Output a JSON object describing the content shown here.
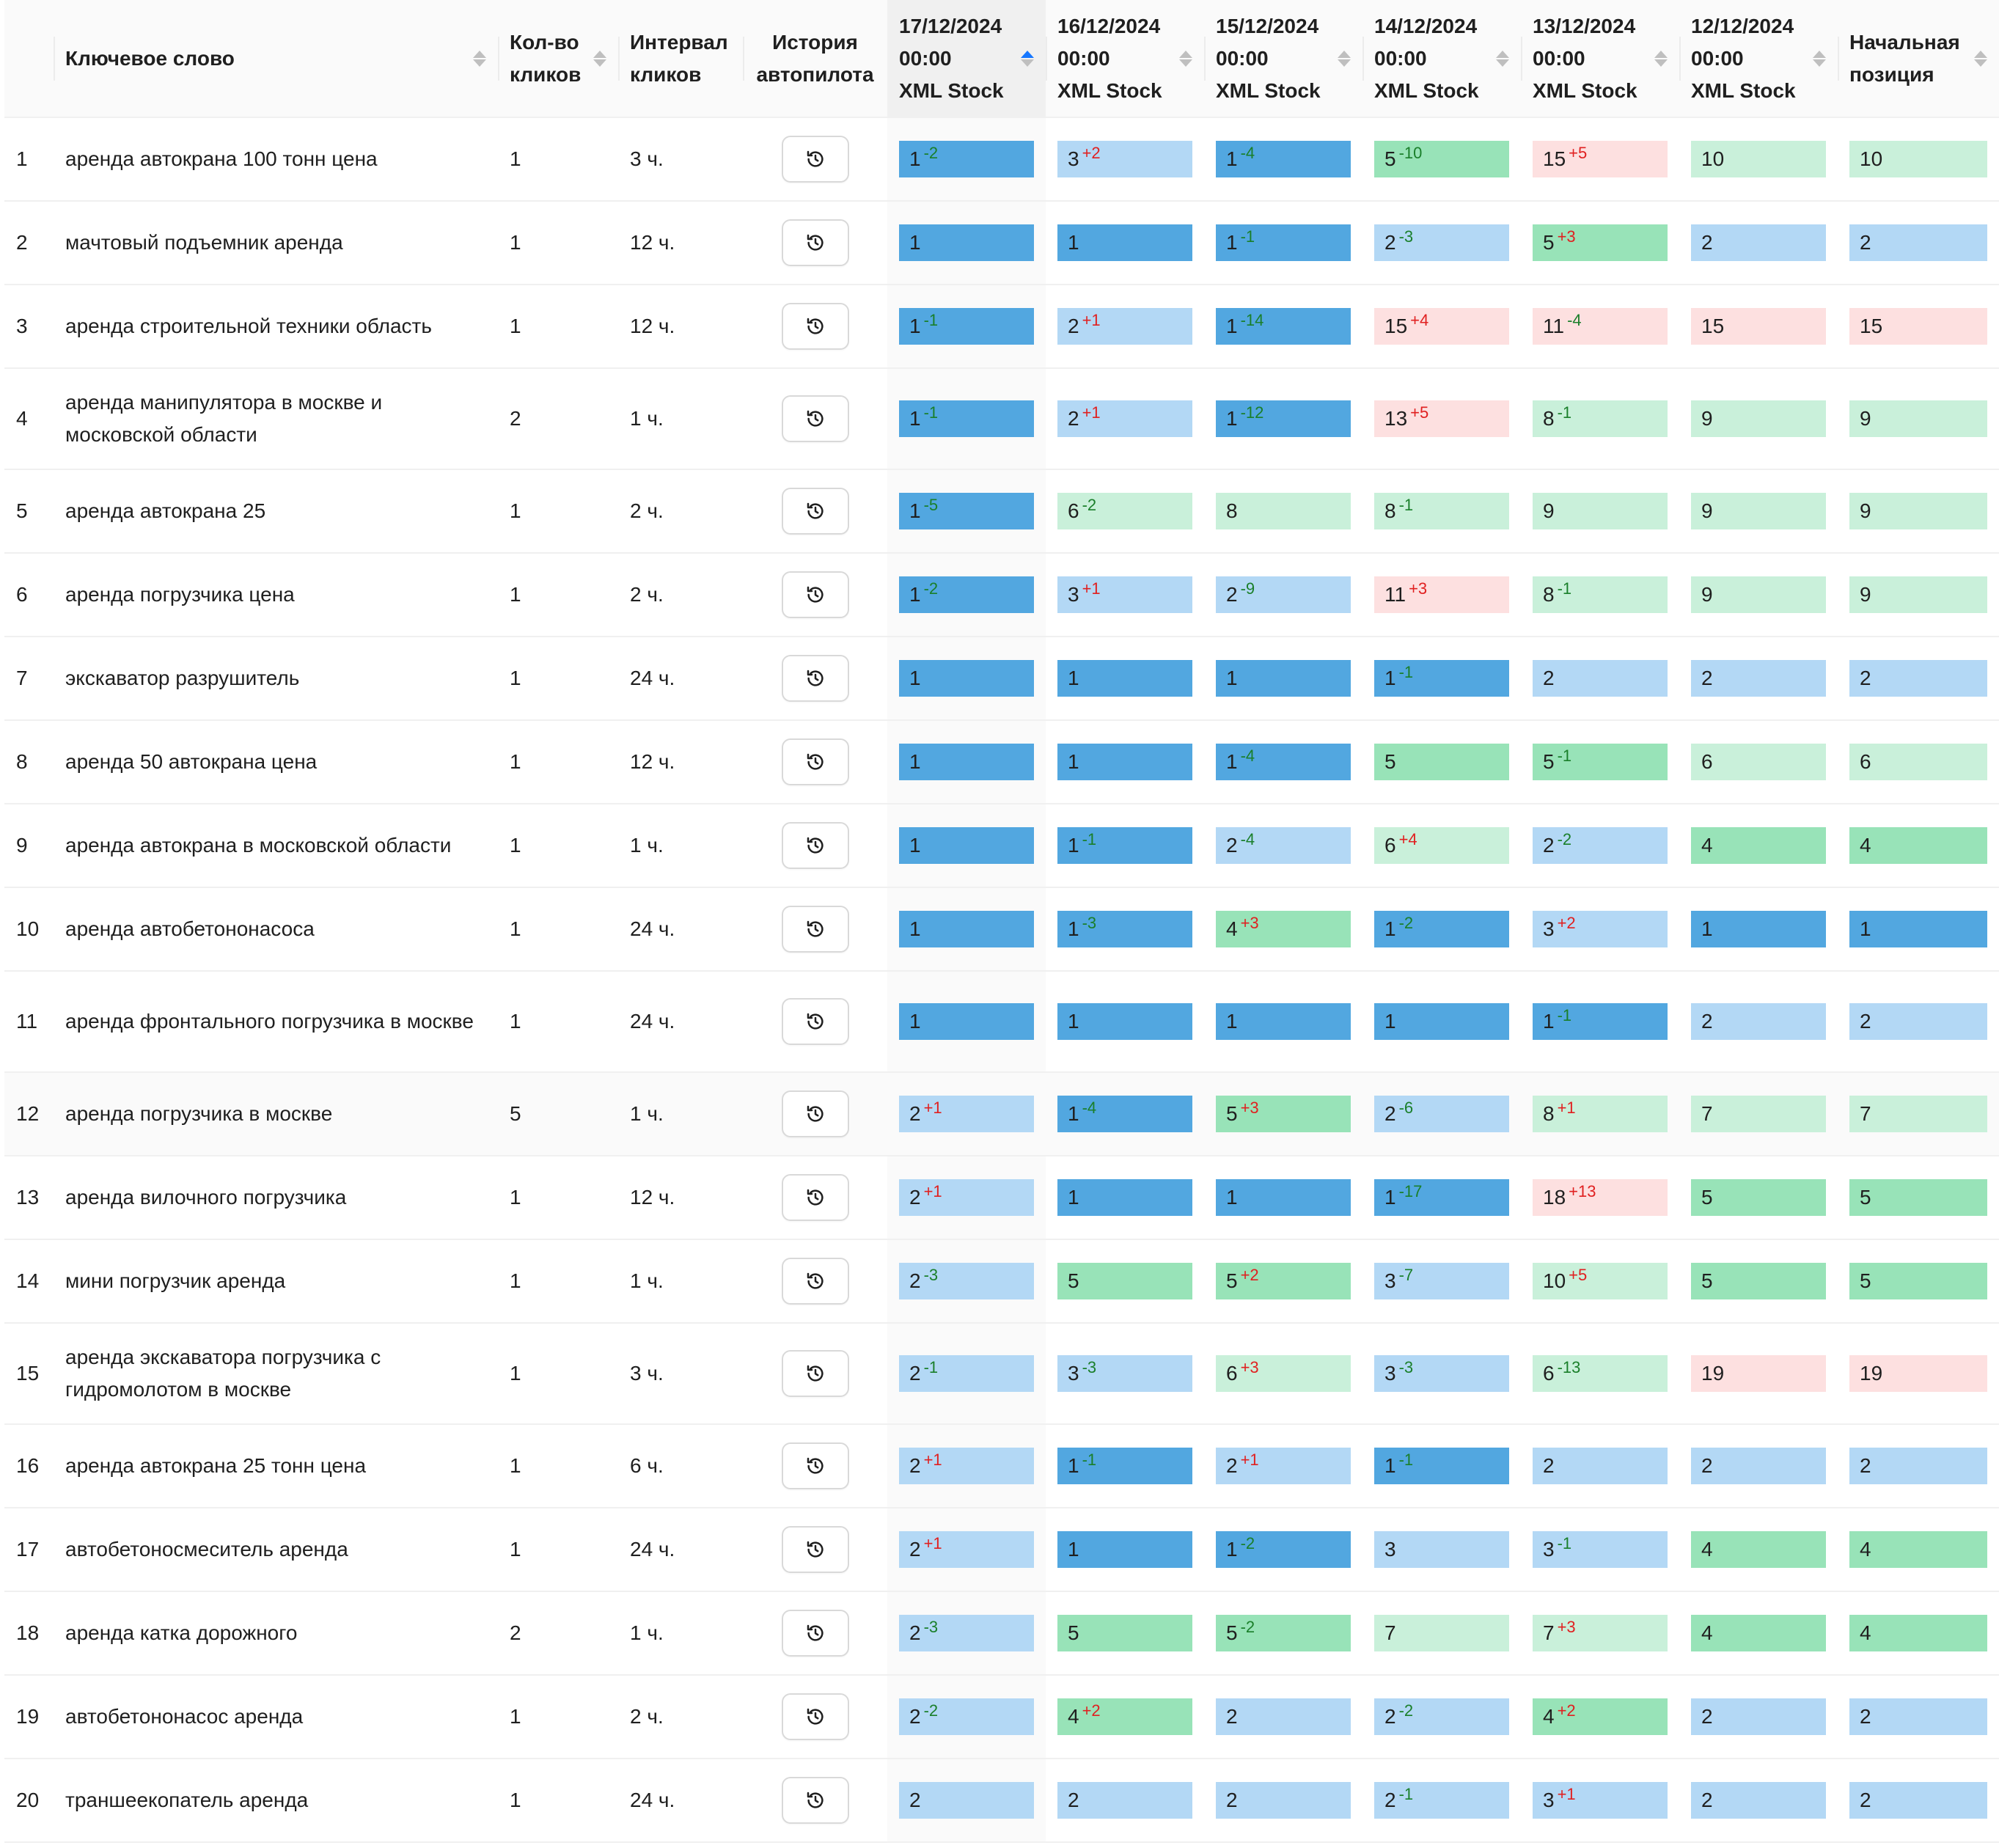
{
  "columns": {
    "keyword": "Ключевое слово",
    "clicks": [
      "Кол-во",
      "кликов"
    ],
    "interval": [
      "Интервал",
      "кликов"
    ],
    "history": [
      "История",
      "автопилота"
    ],
    "dates": [
      {
        "date": "17/12/2024",
        "time": "00:00",
        "source": "XML Stock"
      },
      {
        "date": "16/12/2024",
        "time": "00:00",
        "source": "XML Stock"
      },
      {
        "date": "15/12/2024",
        "time": "00:00",
        "source": "XML Stock"
      },
      {
        "date": "14/12/2024",
        "time": "00:00",
        "source": "XML Stock"
      },
      {
        "date": "13/12/2024",
        "time": "00:00",
        "source": "XML Stock"
      },
      {
        "date": "12/12/2024",
        "time": "00:00",
        "source": "XML Stock"
      }
    ],
    "start": [
      "Начальная",
      "позиция"
    ]
  },
  "colors": {
    "top1": "#52a7e0",
    "top3": "#b3d8f5",
    "top5": "#98e3b8",
    "top10": "#c9f0da",
    "beyond10": "#fde0e0",
    "delta_down": "#1a7f2a",
    "delta_up": "#e02020",
    "sort_active": "#1677ff"
  },
  "icons": {
    "history": "clock-history-icon",
    "sort": "sort-arrows-icon"
  },
  "rows": [
    {
      "n": "1",
      "kw": "аренда автокрана 100 тонн цена",
      "clicks": "1",
      "interval": "3 ч.",
      "pos": [
        [
          "1",
          "-2"
        ],
        [
          "3",
          "+2"
        ],
        [
          "1",
          "-4"
        ],
        [
          "5",
          "-10"
        ],
        [
          "15",
          "+5"
        ],
        [
          "10",
          ""
        ]
      ],
      "start": "10"
    },
    {
      "n": "2",
      "kw": "мачтовый подъемник аренда",
      "clicks": "1",
      "interval": "12 ч.",
      "pos": [
        [
          "1",
          ""
        ],
        [
          "1",
          ""
        ],
        [
          "1",
          "-1"
        ],
        [
          "2",
          "-3"
        ],
        [
          "5",
          "+3"
        ],
        [
          "2",
          ""
        ]
      ],
      "start": "2"
    },
    {
      "n": "3",
      "kw": "аренда строительной техники область",
      "clicks": "1",
      "interval": "12 ч.",
      "pos": [
        [
          "1",
          "-1"
        ],
        [
          "2",
          "+1"
        ],
        [
          "1",
          "-14"
        ],
        [
          "15",
          "+4"
        ],
        [
          "11",
          "-4"
        ],
        [
          "15",
          ""
        ]
      ],
      "start": "15"
    },
    {
      "n": "4",
      "kw": "аренда манипулятора в москве и московской области",
      "clicks": "2",
      "interval": "1 ч.",
      "pos": [
        [
          "1",
          "-1"
        ],
        [
          "2",
          "+1"
        ],
        [
          "1",
          "-12"
        ],
        [
          "13",
          "+5"
        ],
        [
          "8",
          "-1"
        ],
        [
          "9",
          ""
        ]
      ],
      "start": "9"
    },
    {
      "n": "5",
      "kw": "аренда автокрана 25",
      "clicks": "1",
      "interval": "2 ч.",
      "pos": [
        [
          "1",
          "-5"
        ],
        [
          "6",
          "-2"
        ],
        [
          "8",
          ""
        ],
        [
          "8",
          "-1"
        ],
        [
          "9",
          ""
        ],
        [
          "9",
          ""
        ]
      ],
      "start": "9"
    },
    {
      "n": "6",
      "kw": "аренда погрузчика цена",
      "clicks": "1",
      "interval": "2 ч.",
      "pos": [
        [
          "1",
          "-2"
        ],
        [
          "3",
          "+1"
        ],
        [
          "2",
          "-9"
        ],
        [
          "11",
          "+3"
        ],
        [
          "8",
          "-1"
        ],
        [
          "9",
          ""
        ]
      ],
      "start": "9"
    },
    {
      "n": "7",
      "kw": "экскаватор разрушитель",
      "clicks": "1",
      "interval": "24 ч.",
      "pos": [
        [
          "1",
          ""
        ],
        [
          "1",
          ""
        ],
        [
          "1",
          ""
        ],
        [
          "1",
          "-1"
        ],
        [
          "2",
          ""
        ],
        [
          "2",
          ""
        ]
      ],
      "start": "2"
    },
    {
      "n": "8",
      "kw": "аренда 50 автокрана цена",
      "clicks": "1",
      "interval": "12 ч.",
      "pos": [
        [
          "1",
          ""
        ],
        [
          "1",
          ""
        ],
        [
          "1",
          "-4"
        ],
        [
          "5",
          ""
        ],
        [
          "5",
          "-1"
        ],
        [
          "6",
          ""
        ]
      ],
      "start": "6"
    },
    {
      "n": "9",
      "kw": "аренда автокрана в московской области",
      "clicks": "1",
      "interval": "1 ч.",
      "pos": [
        [
          "1",
          ""
        ],
        [
          "1",
          "-1"
        ],
        [
          "2",
          "-4"
        ],
        [
          "6",
          "+4"
        ],
        [
          "2",
          "-2"
        ],
        [
          "4",
          ""
        ]
      ],
      "start": "4"
    },
    {
      "n": "10",
      "kw": "аренда автобетононасоса",
      "clicks": "1",
      "interval": "24 ч.",
      "pos": [
        [
          "1",
          ""
        ],
        [
          "1",
          "-3"
        ],
        [
          "4",
          "+3"
        ],
        [
          "1",
          "-2"
        ],
        [
          "3",
          "+2"
        ],
        [
          "1",
          ""
        ]
      ],
      "start": "1"
    },
    {
      "n": "11",
      "kw": "аренда фронтального погрузчика в москве",
      "clicks": "1",
      "interval": "24 ч.",
      "pos": [
        [
          "1",
          ""
        ],
        [
          "1",
          ""
        ],
        [
          "1",
          ""
        ],
        [
          "1",
          ""
        ],
        [
          "1",
          "-1"
        ],
        [
          "2",
          ""
        ]
      ],
      "start": "2"
    },
    {
      "n": "12",
      "kw": "аренда погрузчика в москве",
      "clicks": "5",
      "interval": "1 ч.",
      "pos": [
        [
          "2",
          "+1"
        ],
        [
          "1",
          "-4"
        ],
        [
          "5",
          "+3"
        ],
        [
          "2",
          "-6"
        ],
        [
          "8",
          "+1"
        ],
        [
          "7",
          ""
        ]
      ],
      "start": "7"
    },
    {
      "n": "13",
      "kw": "аренда вилочного погрузчика",
      "clicks": "1",
      "interval": "12 ч.",
      "pos": [
        [
          "2",
          "+1"
        ],
        [
          "1",
          ""
        ],
        [
          "1",
          ""
        ],
        [
          "1",
          "-17"
        ],
        [
          "18",
          "+13"
        ],
        [
          "5",
          ""
        ]
      ],
      "start": "5"
    },
    {
      "n": "14",
      "kw": "мини погрузчик аренда",
      "clicks": "1",
      "interval": "1 ч.",
      "pos": [
        [
          "2",
          "-3"
        ],
        [
          "5",
          ""
        ],
        [
          "5",
          "+2"
        ],
        [
          "3",
          "-7"
        ],
        [
          "10",
          "+5"
        ],
        [
          "5",
          ""
        ]
      ],
      "start": "5"
    },
    {
      "n": "15",
      "kw": "аренда экскаватора погрузчика с гидромолотом в москве",
      "clicks": "1",
      "interval": "3 ч.",
      "pos": [
        [
          "2",
          "-1"
        ],
        [
          "3",
          "-3"
        ],
        [
          "6",
          "+3"
        ],
        [
          "3",
          "-3"
        ],
        [
          "6",
          "-13"
        ],
        [
          "19",
          ""
        ]
      ],
      "start": "19"
    },
    {
      "n": "16",
      "kw": "аренда автокрана 25 тонн цена",
      "clicks": "1",
      "interval": "6 ч.",
      "pos": [
        [
          "2",
          "+1"
        ],
        [
          "1",
          "-1"
        ],
        [
          "2",
          "+1"
        ],
        [
          "1",
          "-1"
        ],
        [
          "2",
          ""
        ],
        [
          "2",
          ""
        ]
      ],
      "start": "2"
    },
    {
      "n": "17",
      "kw": "автобетоносмеситель аренда",
      "clicks": "1",
      "interval": "24 ч.",
      "pos": [
        [
          "2",
          "+1"
        ],
        [
          "1",
          ""
        ],
        [
          "1",
          "-2"
        ],
        [
          "3",
          ""
        ],
        [
          "3",
          "-1"
        ],
        [
          "4",
          ""
        ]
      ],
      "start": "4"
    },
    {
      "n": "18",
      "kw": "аренда катка дорожного",
      "clicks": "2",
      "interval": "1 ч.",
      "pos": [
        [
          "2",
          "-3"
        ],
        [
          "5",
          ""
        ],
        [
          "5",
          "-2"
        ],
        [
          "7",
          ""
        ],
        [
          "7",
          "+3"
        ],
        [
          "4",
          ""
        ]
      ],
      "start": "4"
    },
    {
      "n": "19",
      "kw": "автобетононасос аренда",
      "clicks": "1",
      "interval": "2 ч.",
      "pos": [
        [
          "2",
          "-2"
        ],
        [
          "4",
          "+2"
        ],
        [
          "2",
          ""
        ],
        [
          "2",
          "-2"
        ],
        [
          "4",
          "+2"
        ],
        [
          "2",
          ""
        ]
      ],
      "start": "2"
    },
    {
      "n": "20",
      "kw": "траншеекопатель аренда",
      "clicks": "1",
      "interval": "24 ч.",
      "pos": [
        [
          "2",
          ""
        ],
        [
          "2",
          ""
        ],
        [
          "2",
          ""
        ],
        [
          "2",
          "-1"
        ],
        [
          "3",
          "+1"
        ],
        [
          "2",
          ""
        ]
      ],
      "start": "2"
    }
  ]
}
